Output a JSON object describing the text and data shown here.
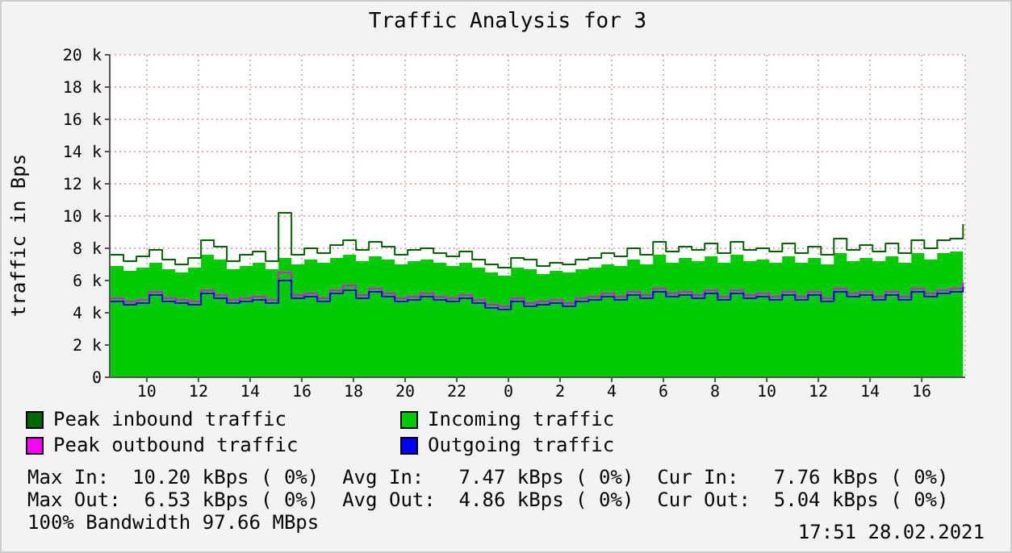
{
  "chart_data": {
    "type": "area",
    "title": "Traffic Analysis for 3",
    "ylabel": "traffic in Bps",
    "x": [
      "2021-02-27T08:36",
      "2021-02-27T09:06",
      "2021-02-27T09:36",
      "2021-02-27T10:06",
      "2021-02-27T10:36",
      "2021-02-27T11:06",
      "2021-02-27T11:36",
      "2021-02-27T12:06",
      "2021-02-27T12:36",
      "2021-02-27T13:06",
      "2021-02-27T13:36",
      "2021-02-27T14:06",
      "2021-02-27T14:36",
      "2021-02-27T15:06",
      "2021-02-27T15:36",
      "2021-02-27T16:06",
      "2021-02-27T16:36",
      "2021-02-27T17:06",
      "2021-02-27T17:36",
      "2021-02-27T18:06",
      "2021-02-27T18:36",
      "2021-02-27T19:06",
      "2021-02-27T19:36",
      "2021-02-27T20:06",
      "2021-02-27T20:36",
      "2021-02-27T21:06",
      "2021-02-27T21:36",
      "2021-02-27T22:06",
      "2021-02-27T22:36",
      "2021-02-27T23:06",
      "2021-02-27T23:36",
      "2021-02-28T00:06",
      "2021-02-28T00:36",
      "2021-02-28T01:06",
      "2021-02-28T01:36",
      "2021-02-28T02:06",
      "2021-02-28T02:36",
      "2021-02-28T03:06",
      "2021-02-28T03:36",
      "2021-02-28T04:06",
      "2021-02-28T04:36",
      "2021-02-28T05:06",
      "2021-02-28T05:36",
      "2021-02-28T06:06",
      "2021-02-28T06:36",
      "2021-02-28T07:06",
      "2021-02-28T07:36",
      "2021-02-28T08:06",
      "2021-02-28T08:36",
      "2021-02-28T09:06",
      "2021-02-28T09:36",
      "2021-02-28T10:06",
      "2021-02-28T10:36",
      "2021-02-28T11:06",
      "2021-02-28T11:36",
      "2021-02-28T12:06",
      "2021-02-28T12:36",
      "2021-02-28T13:06",
      "2021-02-28T13:36",
      "2021-02-28T14:06",
      "2021-02-28T14:36",
      "2021-02-28T15:06",
      "2021-02-28T15:36",
      "2021-02-28T16:06",
      "2021-02-28T16:36",
      "2021-02-28T17:06",
      "2021-02-28T17:36"
    ],
    "series": [
      {
        "name": "Peak inbound traffic",
        "type": "step",
        "color": "#006600",
        "values": [
          7600,
          7200,
          7500,
          7900,
          7300,
          7000,
          7400,
          8500,
          8100,
          7200,
          7600,
          7800,
          7200,
          10200,
          7600,
          8000,
          7700,
          8200,
          8500,
          7900,
          8400,
          8100,
          7600,
          7900,
          8000,
          7700,
          7500,
          7800,
          7300,
          7000,
          6800,
          7400,
          7300,
          6900,
          7100,
          7000,
          7300,
          7400,
          7700,
          7500,
          8000,
          7600,
          8400,
          7800,
          8100,
          7900,
          8300,
          7700,
          8400,
          7900,
          8000,
          7800,
          8300,
          7700,
          8100,
          7600,
          8600,
          7900,
          8200,
          7800,
          8300,
          7700,
          8500,
          8000,
          8500,
          8600,
          9500
        ]
      },
      {
        "name": "Incoming traffic",
        "type": "area",
        "color": "#00cc00",
        "values": [
          6900,
          6600,
          6800,
          7100,
          6700,
          6500,
          6800,
          7600,
          7300,
          6700,
          6900,
          7100,
          6700,
          7400,
          7000,
          7300,
          7100,
          7400,
          7600,
          7200,
          7500,
          7300,
          7000,
          7200,
          7300,
          7100,
          6900,
          7100,
          6800,
          6500,
          6300,
          6800,
          6700,
          6400,
          6600,
          6500,
          6700,
          6800,
          7000,
          6900,
          7300,
          7000,
          7600,
          7100,
          7400,
          7200,
          7500,
          7100,
          7600,
          7200,
          7300,
          7100,
          7500,
          7100,
          7400,
          7000,
          7700,
          7200,
          7400,
          7200,
          7500,
          7100,
          7700,
          7300,
          7700,
          7800,
          8300
        ]
      },
      {
        "name": "Peak outbound traffic",
        "type": "step",
        "color": "#ff00ff",
        "values": [
          4900,
          4700,
          4800,
          5300,
          4900,
          4800,
          4700,
          5400,
          5100,
          4800,
          4900,
          5000,
          4800,
          6500,
          5100,
          5200,
          4900,
          5400,
          5700,
          5100,
          5500,
          5200,
          4900,
          5000,
          5200,
          5000,
          4900,
          5100,
          4800,
          4500,
          4400,
          4900,
          4600,
          4700,
          4800,
          4600,
          4900,
          5000,
          5200,
          5000,
          5300,
          5100,
          5500,
          5200,
          5300,
          5100,
          5400,
          5000,
          5400,
          5100,
          5200,
          5000,
          5300,
          5000,
          5300,
          4900,
          5500,
          5200,
          5300,
          5000,
          5300,
          5000,
          5500,
          5200,
          5400,
          5500,
          5900
        ]
      },
      {
        "name": "Outgoing traffic",
        "type": "step",
        "color": "#0000ff",
        "values": [
          4700,
          4500,
          4600,
          5100,
          4700,
          4600,
          4500,
          5200,
          4900,
          4600,
          4700,
          4800,
          4600,
          6000,
          4900,
          5000,
          4700,
          5200,
          5400,
          4900,
          5300,
          5000,
          4700,
          4800,
          5000,
          4800,
          4700,
          4900,
          4600,
          4300,
          4200,
          4700,
          4400,
          4500,
          4600,
          4400,
          4700,
          4800,
          5000,
          4800,
          5100,
          4900,
          5300,
          5000,
          5100,
          4900,
          5200,
          4800,
          5200,
          4900,
          5000,
          4800,
          5100,
          4800,
          5100,
          4700,
          5300,
          5000,
          5100,
          4800,
          5100,
          4800,
          5300,
          5000,
          5200,
          5300,
          5600
        ]
      }
    ],
    "xlim": [
      "2021-02-27T08:34",
      "2021-02-28T17:41"
    ],
    "xticks": [
      {
        "value": "2021-02-27T10:00",
        "label": "10"
      },
      {
        "value": "2021-02-27T12:00",
        "label": "12"
      },
      {
        "value": "2021-02-27T14:00",
        "label": "14"
      },
      {
        "value": "2021-02-27T16:00",
        "label": "16"
      },
      {
        "value": "2021-02-27T18:00",
        "label": "18"
      },
      {
        "value": "2021-02-27T20:00",
        "label": "20"
      },
      {
        "value": "2021-02-27T22:00",
        "label": "22"
      },
      {
        "value": "2021-02-28T00:00",
        "label": "0"
      },
      {
        "value": "2021-02-28T02:00",
        "label": "2"
      },
      {
        "value": "2021-02-28T04:00",
        "label": "4"
      },
      {
        "value": "2021-02-28T06:00",
        "label": "6"
      },
      {
        "value": "2021-02-28T08:00",
        "label": "8"
      },
      {
        "value": "2021-02-28T10:00",
        "label": "10"
      },
      {
        "value": "2021-02-28T12:00",
        "label": "12"
      },
      {
        "value": "2021-02-28T14:00",
        "label": "14"
      },
      {
        "value": "2021-02-28T16:00",
        "label": "16"
      }
    ],
    "ylim": [
      0,
      20000
    ],
    "yticks": [
      {
        "value": 0,
        "label": "0"
      },
      {
        "value": 2000,
        "label": "2 k"
      },
      {
        "value": 4000,
        "label": "4 k"
      },
      {
        "value": 6000,
        "label": "6 k"
      },
      {
        "value": 8000,
        "label": "8 k"
      },
      {
        "value": 10000,
        "label": "10 k"
      },
      {
        "value": 12000,
        "label": "12 k"
      },
      {
        "value": 14000,
        "label": "14 k"
      },
      {
        "value": 16000,
        "label": "16 k"
      },
      {
        "value": 18000,
        "label": "18 k"
      },
      {
        "value": 20000,
        "label": "20 k"
      }
    ],
    "grid": true,
    "legend": "bottom",
    "annotations": [
      "Max In:  10.20 kBps ( 0%)  Avg In:   7.47 kBps ( 0%)  Cur In:   7.76 kBps ( 0%)",
      "Max Out:  6.53 kBps ( 0%)  Avg Out:  4.86 kBps ( 0%)  Cur Out:  5.04 kBps ( 0%)",
      "100% Bandwidth 97.66 MBps",
      "17:51 28.02.2021"
    ]
  }
}
